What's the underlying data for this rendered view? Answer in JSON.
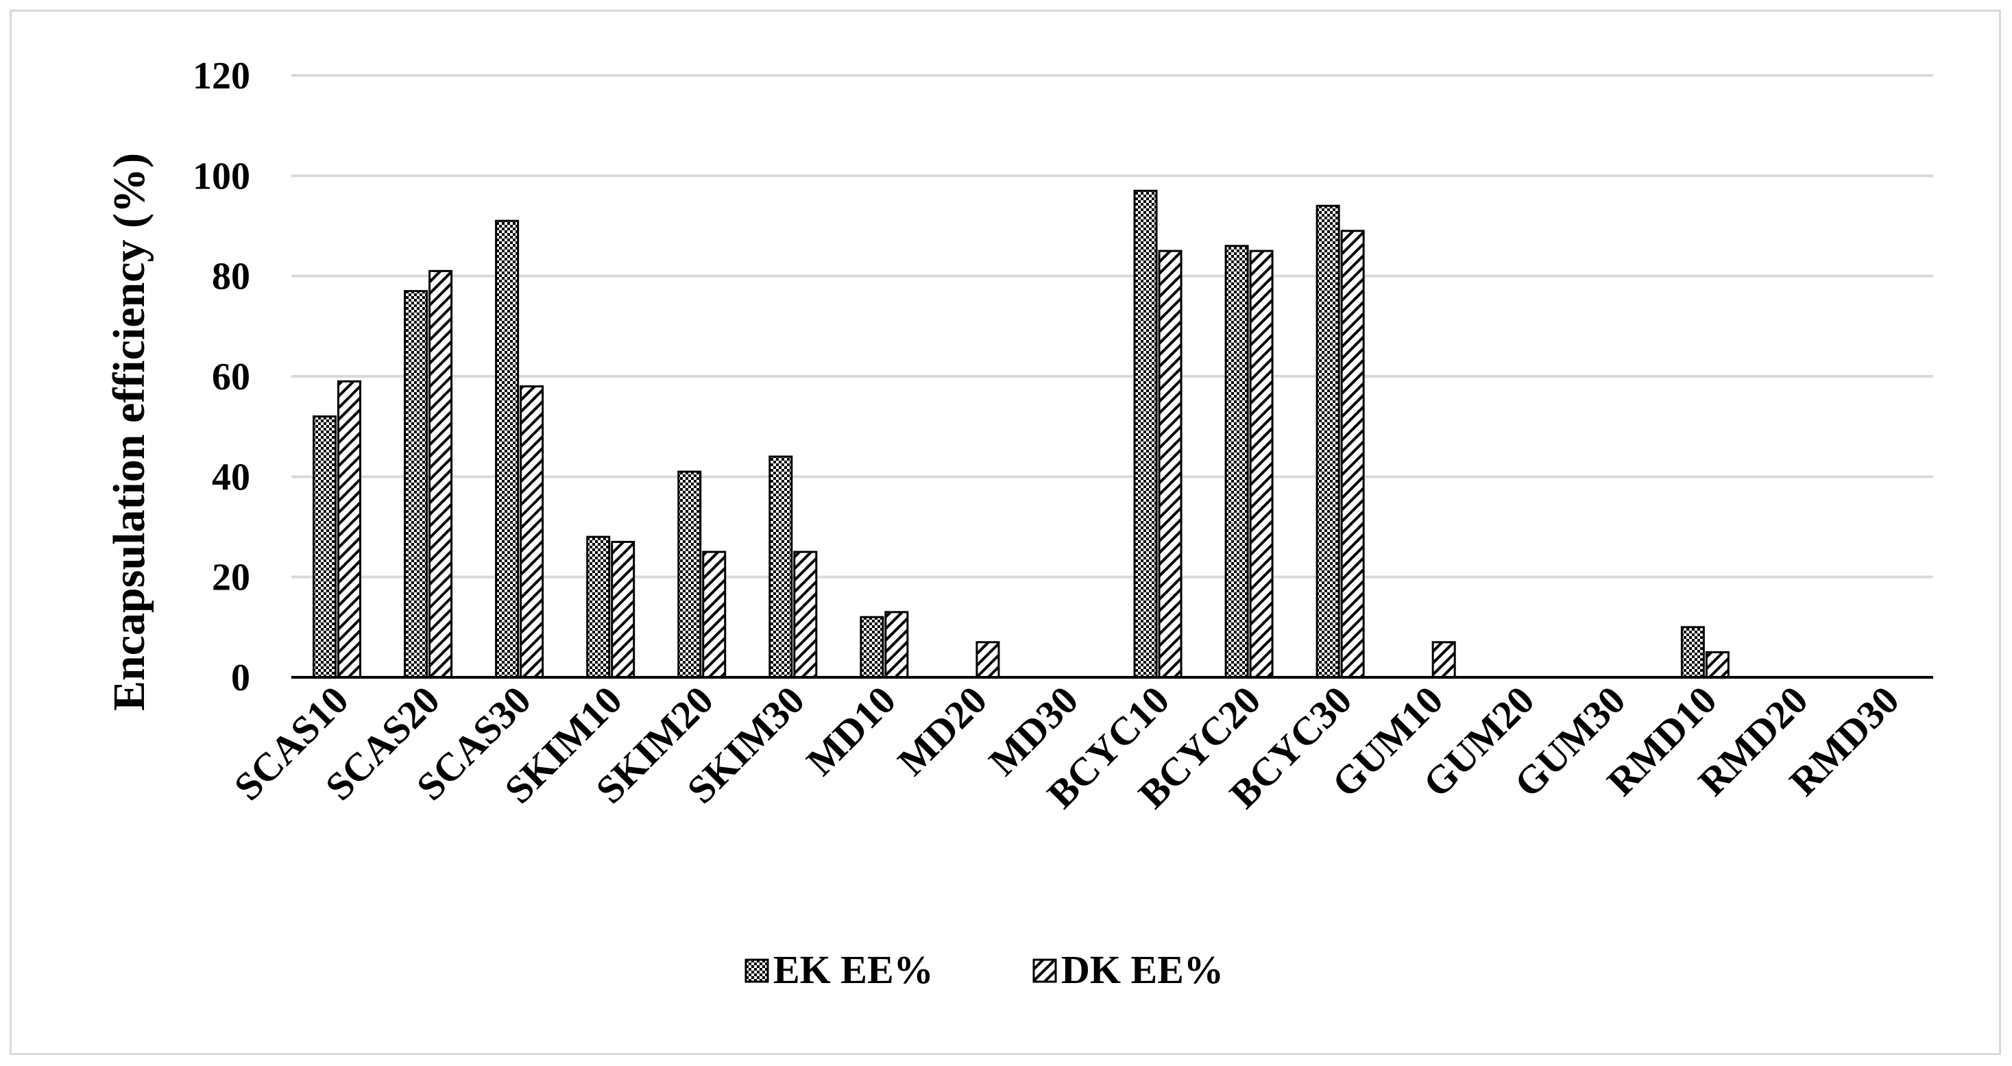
{
  "chart_data": {
    "type": "bar",
    "categories": [
      "SCAS10",
      "SCAS20",
      "SCAS30",
      "SKIM10",
      "SKIM20",
      "SKIM30",
      "MD10",
      "MD20",
      "MD30",
      "BCYC10",
      "BCYC20",
      "BCYC30",
      "GUM10",
      "GUM20",
      "GUM30",
      "RMD10",
      "RMD20",
      "RMD30"
    ],
    "series": [
      {
        "name": "EK EE%",
        "pattern": "dots",
        "values": [
          52,
          77,
          91,
          28,
          41,
          44,
          12,
          0,
          0,
          97,
          86,
          94,
          0,
          0,
          0,
          10,
          0,
          0
        ]
      },
      {
        "name": "DK EE%",
        "pattern": "diagonal",
        "values": [
          59,
          81,
          58,
          27,
          25,
          25,
          13,
          7,
          0,
          85,
          85,
          89,
          7,
          0,
          0,
          5,
          0,
          0
        ]
      }
    ],
    "title": "",
    "xlabel": "",
    "ylabel": "Encapsulation efficiency (%)",
    "ylim": [
      0,
      120
    ],
    "yticks": [
      "0",
      "20",
      "40",
      "60",
      "80",
      "100",
      "120"
    ],
    "grid": true,
    "legend_position": "bottom",
    "colors": {
      "grid": "#d9d9d9",
      "bar_outline": "#000000",
      "axis": "#000000"
    }
  }
}
